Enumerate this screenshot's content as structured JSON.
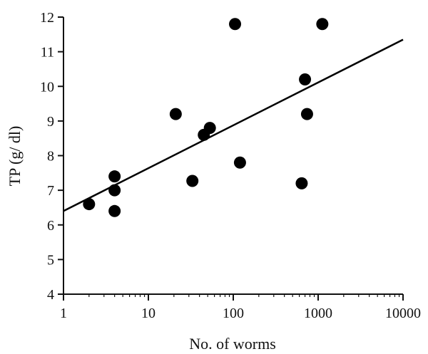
{
  "chart_data": {
    "type": "scatter",
    "xlabel": "No. of worms",
    "ylabel": "TP (g/ dl)",
    "xscale": "log",
    "xlim": [
      1,
      10000
    ],
    "ylim": [
      4,
      12
    ],
    "x_ticks": [
      1,
      10,
      100,
      1000,
      10000
    ],
    "x_tick_labels": [
      "1",
      "10",
      "100",
      "1000",
      "10000"
    ],
    "y_ticks": [
      4,
      5,
      6,
      7,
      8,
      9,
      10,
      11,
      12
    ],
    "y_tick_labels": [
      "4",
      "5",
      "6",
      "7",
      "8",
      "9",
      "10",
      "11",
      "12"
    ],
    "grid": false,
    "series": [
      {
        "points": [
          {
            "x": 2,
            "y": 6.6
          },
          {
            "x": 4,
            "y": 7.4
          },
          {
            "x": 4,
            "y": 7.0
          },
          {
            "x": 4,
            "y": 6.4
          },
          {
            "x": 21,
            "y": 9.2
          },
          {
            "x": 33,
            "y": 7.27
          },
          {
            "x": 45,
            "y": 8.6
          },
          {
            "x": 53,
            "y": 8.8
          },
          {
            "x": 105,
            "y": 11.8
          },
          {
            "x": 120,
            "y": 7.8
          },
          {
            "x": 640,
            "y": 7.2
          },
          {
            "x": 700,
            "y": 10.2
          },
          {
            "x": 740,
            "y": 9.2
          },
          {
            "x": 1120,
            "y": 11.8
          }
        ],
        "color": "#000000"
      }
    ],
    "trendline": {
      "type": "linear-in-log-x",
      "from": {
        "x": 1,
        "y": 6.4
      },
      "to": {
        "x": 10000,
        "y": 11.35
      },
      "color": "#000000"
    }
  }
}
